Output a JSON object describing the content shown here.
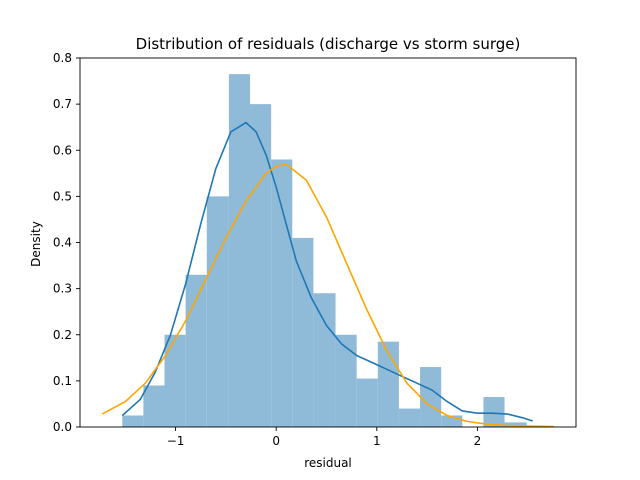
{
  "chart_data": {
    "type": "bar",
    "title": "Distribution of residuals (discharge vs storm surge)",
    "xlabel": "residual",
    "ylabel": "Density",
    "xlim": [
      -1.95,
      2.98
    ],
    "ylim": [
      0,
      0.8
    ],
    "xticks": [
      -1,
      0,
      1,
      2
    ],
    "xtick_labels": [
      "−1",
      "0",
      "1",
      "2"
    ],
    "yticks": [
      0.0,
      0.1,
      0.2,
      0.3,
      0.4,
      0.5,
      0.6,
      0.7,
      0.8
    ],
    "ytick_labels": [
      "0.0",
      "0.1",
      "0.2",
      "0.3",
      "0.4",
      "0.5",
      "0.6",
      "0.7",
      "0.8"
    ],
    "grid": false,
    "histogram": {
      "color": "#8fbbd9",
      "bin_edges": [
        -1.53,
        -1.32,
        -1.11,
        -0.9,
        -0.69,
        -0.47,
        -0.26,
        -0.05,
        0.16,
        0.37,
        0.59,
        0.8,
        1.01,
        1.22,
        1.43,
        1.64,
        1.85,
        2.06,
        2.27,
        2.49
      ],
      "values": [
        0.025,
        0.09,
        0.2,
        0.33,
        0.5,
        0.765,
        0.7,
        0.58,
        0.41,
        0.29,
        0.2,
        0.105,
        0.185,
        0.04,
        0.13,
        0.025,
        0.0,
        0.065,
        0.01
      ]
    },
    "series": [
      {
        "color": "#1f77b4",
        "x": [
          -1.53,
          -1.35,
          -1.2,
          -1.05,
          -0.9,
          -0.75,
          -0.6,
          -0.45,
          -0.3,
          -0.2,
          -0.1,
          0.0,
          0.1,
          0.2,
          0.35,
          0.5,
          0.65,
          0.8,
          0.95,
          1.1,
          1.25,
          1.4,
          1.55,
          1.7,
          1.85,
          2.0,
          2.15,
          2.3,
          2.45,
          2.55
        ],
        "y": [
          0.025,
          0.06,
          0.12,
          0.2,
          0.31,
          0.44,
          0.56,
          0.64,
          0.66,
          0.64,
          0.59,
          0.52,
          0.44,
          0.36,
          0.28,
          0.22,
          0.18,
          0.155,
          0.14,
          0.125,
          0.11,
          0.095,
          0.08,
          0.055,
          0.035,
          0.03,
          0.03,
          0.028,
          0.02,
          0.013
        ]
      },
      {
        "color": "#ffa500",
        "x": [
          -1.73,
          -1.5,
          -1.3,
          -1.1,
          -0.9,
          -0.7,
          -0.5,
          -0.3,
          -0.1,
          0.0,
          0.1,
          0.3,
          0.5,
          0.7,
          0.9,
          1.1,
          1.3,
          1.5,
          1.7,
          1.9,
          2.1,
          2.3,
          2.5,
          2.76
        ],
        "y": [
          0.028,
          0.055,
          0.095,
          0.155,
          0.23,
          0.32,
          0.41,
          0.49,
          0.55,
          0.565,
          0.57,
          0.535,
          0.455,
          0.355,
          0.255,
          0.165,
          0.095,
          0.05,
          0.025,
          0.012,
          0.006,
          0.003,
          0.002,
          0.001
        ]
      }
    ]
  }
}
